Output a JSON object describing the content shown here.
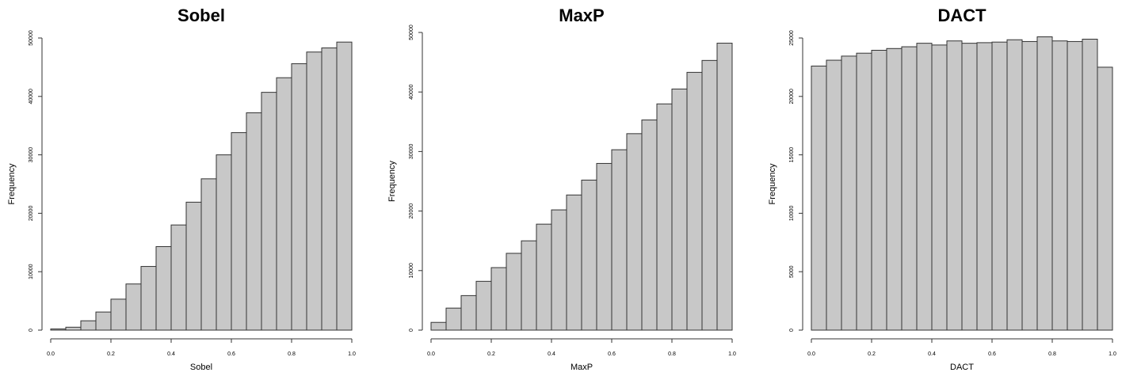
{
  "chart_data": [
    {
      "type": "bar",
      "title": "Sobel",
      "xlabel": "Sobel",
      "ylabel": "Frequency",
      "bin_edges": [
        0.0,
        0.05,
        0.1,
        0.15,
        0.2,
        0.25,
        0.3,
        0.35,
        0.4,
        0.45,
        0.5,
        0.55,
        0.6,
        0.65,
        0.7,
        0.75,
        0.8,
        0.85,
        0.9,
        0.95,
        1.0
      ],
      "values": [
        200,
        500,
        1600,
        3100,
        5300,
        7900,
        10900,
        14300,
        18000,
        21900,
        25900,
        30000,
        33800,
        37200,
        40700,
        43200,
        45600,
        47600,
        48300,
        49300
      ],
      "xlim": [
        0,
        1
      ],
      "ylim": [
        0,
        50000
      ],
      "xticks": [
        0.0,
        0.2,
        0.4,
        0.6,
        0.8,
        1.0
      ],
      "xtick_labels": [
        "0.0",
        "0.2",
        "0.4",
        "0.6",
        "0.8",
        "1.0"
      ],
      "yticks": [
        0,
        10000,
        20000,
        30000,
        40000,
        50000
      ],
      "ytick_labels": [
        "0",
        "10000",
        "20000",
        "30000",
        "40000",
        "50000"
      ]
    },
    {
      "type": "bar",
      "title": "MaxP",
      "xlabel": "MaxP",
      "ylabel": "Frequency",
      "bin_edges": [
        0.0,
        0.05,
        0.1,
        0.15,
        0.2,
        0.25,
        0.3,
        0.35,
        0.4,
        0.45,
        0.5,
        0.55,
        0.6,
        0.65,
        0.7,
        0.75,
        0.8,
        0.85,
        0.9,
        0.95,
        1.0
      ],
      "values": [
        1300,
        3700,
        5800,
        8200,
        10500,
        12900,
        15000,
        17800,
        20200,
        22700,
        25200,
        28000,
        30300,
        33000,
        35300,
        38000,
        40500,
        43300,
        45300,
        48200
      ],
      "xlim": [
        0,
        1
      ],
      "ylim": [
        0,
        50000
      ],
      "xticks": [
        0.0,
        0.2,
        0.4,
        0.6,
        0.8,
        1.0
      ],
      "xtick_labels": [
        "0.0",
        "0.2",
        "0.4",
        "0.6",
        "0.8",
        "1.0"
      ],
      "yticks": [
        0,
        10000,
        20000,
        30000,
        40000,
        50000
      ],
      "ytick_labels": [
        "0",
        "10000",
        "20000",
        "30000",
        "40000",
        "50000"
      ]
    },
    {
      "type": "bar",
      "title": "DACT",
      "xlabel": "DACT",
      "ylabel": "Frequency",
      "bin_edges": [
        0.0,
        0.05,
        0.1,
        0.15,
        0.2,
        0.25,
        0.3,
        0.35,
        0.4,
        0.45,
        0.5,
        0.55,
        0.6,
        0.65,
        0.7,
        0.75,
        0.8,
        0.85,
        0.9,
        0.95,
        1.0
      ],
      "values": [
        22600,
        23100,
        23450,
        23700,
        23950,
        24100,
        24250,
        24550,
        24400,
        24750,
        24550,
        24600,
        24650,
        24850,
        24700,
        25100,
        24750,
        24700,
        24900,
        22500
      ],
      "xlim": [
        0,
        1
      ],
      "ylim": [
        0,
        25000
      ],
      "xticks": [
        0.0,
        0.2,
        0.4,
        0.6,
        0.8,
        1.0
      ],
      "xtick_labels": [
        "0.0",
        "0.2",
        "0.4",
        "0.6",
        "0.8",
        "1.0"
      ],
      "yticks": [
        0,
        5000,
        10000,
        15000,
        20000,
        25000
      ],
      "ytick_labels": [
        "0",
        "5000",
        "10000",
        "15000",
        "20000",
        "25000"
      ]
    }
  ]
}
